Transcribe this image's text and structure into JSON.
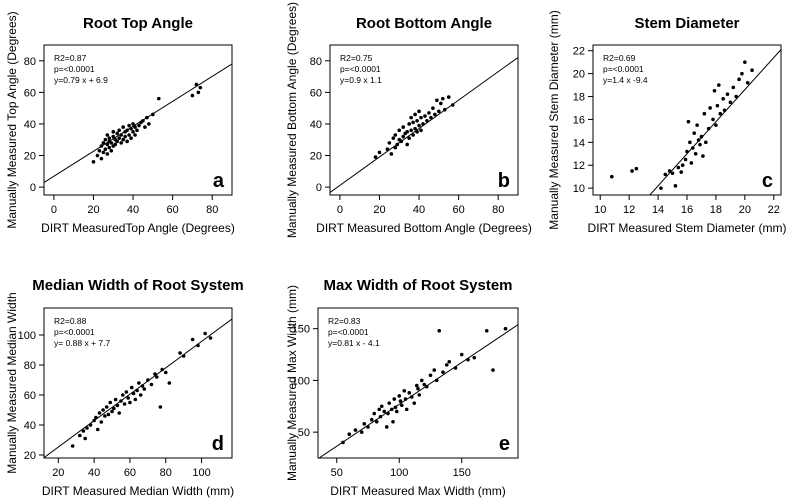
{
  "chart_data": [
    {
      "type": "scatter",
      "title": "Root Top Angle",
      "xlabel": "DIRT MeasuredTop Angle (Degrees)",
      "ylabel": "Manually Measured Top Angle (Degrees)",
      "xlim": [
        -5,
        90
      ],
      "ylim": [
        -5,
        90
      ],
      "xticks": [
        0,
        20,
        40,
        60,
        80
      ],
      "yticks": [
        0,
        20,
        40,
        60,
        80
      ],
      "stats": [
        "R2=0.87",
        "p=<0.0001",
        "y=0.79 x + 6.9"
      ],
      "fit": {
        "slope": 0.79,
        "intercept": 6.9
      },
      "panel_label": "a",
      "x": [
        20,
        22,
        23,
        24,
        24,
        25,
        25,
        26,
        26,
        27,
        27,
        27,
        28,
        28,
        28,
        29,
        29,
        30,
        30,
        30,
        31,
        31,
        32,
        32,
        33,
        33,
        34,
        34,
        35,
        35,
        36,
        36,
        37,
        37,
        38,
        38,
        39,
        39,
        40,
        40,
        41,
        41,
        42,
        43,
        44,
        45,
        46,
        47,
        48,
        50,
        53,
        70,
        72,
        73,
        74
      ],
      "y": [
        16,
        20,
        23,
        18,
        26,
        22,
        28,
        24,
        30,
        21,
        27,
        33,
        25,
        29,
        31,
        23,
        28,
        26,
        32,
        35,
        27,
        30,
        29,
        34,
        31,
        36,
        28,
        33,
        30,
        38,
        32,
        35,
        29,
        36,
        33,
        39,
        31,
        37,
        35,
        40,
        33,
        38,
        36,
        39,
        41,
        42,
        38,
        44,
        40,
        46,
        56,
        58,
        65,
        60,
        63
      ]
    },
    {
      "type": "scatter",
      "title": "Root Bottom Angle",
      "xlabel": "DIRT Measured Bottom Angle (Degrees)",
      "ylabel": "Manually Measured Bottom Angle (Degrees)",
      "xlim": [
        -5,
        90
      ],
      "ylim": [
        -5,
        90
      ],
      "xticks": [
        0,
        20,
        40,
        60,
        80
      ],
      "yticks": [
        0,
        20,
        40,
        60,
        80
      ],
      "stats": [
        "R2=0.75",
        "p=<0.0001",
        "y=0.9 x 1.1"
      ],
      "fit": {
        "slope": 0.9,
        "intercept": 1.1
      },
      "panel_label": "b",
      "x": [
        18,
        20,
        24,
        25,
        26,
        27,
        28,
        28,
        29,
        30,
        30,
        31,
        32,
        32,
        33,
        34,
        34,
        35,
        35,
        36,
        36,
        37,
        37,
        38,
        38,
        39,
        39,
        40,
        40,
        41,
        41,
        42,
        43,
        44,
        45,
        46,
        47,
        48,
        49,
        50,
        51,
        52,
        53,
        55,
        57
      ],
      "y": [
        19,
        22,
        24,
        28,
        21,
        31,
        25,
        33,
        27,
        30,
        36,
        29,
        32,
        38,
        34,
        27,
        35,
        31,
        40,
        36,
        44,
        33,
        41,
        37,
        46,
        35,
        42,
        39,
        48,
        36,
        44,
        40,
        45,
        42,
        47,
        44,
        50,
        46,
        55,
        48,
        53,
        56,
        49,
        57,
        52
      ]
    },
    {
      "type": "scatter",
      "title": "Stem Diameter",
      "xlabel": "DIRT Measured Stem Diameter (mm)",
      "ylabel": "Manually Measured Stem Diameter (mm)",
      "xlim": [
        9.5,
        22.5
      ],
      "ylim": [
        9.4,
        22.5
      ],
      "xticks": [
        10,
        12,
        14,
        16,
        18,
        20,
        22
      ],
      "yticks": [
        10,
        12,
        14,
        16,
        18,
        20,
        22
      ],
      "stats": [
        "R2=0.69",
        "p=<0.0001",
        "y=1.4 x -9.4"
      ],
      "fit": {
        "slope": 1.4,
        "intercept": -9.4
      },
      "panel_label": "c",
      "x": [
        10.8,
        12.2,
        12.5,
        14.2,
        14.5,
        14.8,
        15.0,
        15.2,
        15.4,
        15.6,
        15.7,
        15.9,
        16.0,
        16.1,
        16.2,
        16.3,
        16.4,
        16.5,
        16.6,
        16.7,
        16.8,
        16.9,
        17.0,
        17.1,
        17.2,
        17.3,
        17.5,
        17.6,
        17.8,
        17.9,
        18.0,
        18.1,
        18.2,
        18.3,
        18.5,
        18.6,
        18.8,
        19.0,
        19.2,
        19.4,
        19.6,
        19.8,
        20.0,
        20.2,
        20.5
      ],
      "y": [
        11.0,
        11.5,
        11.7,
        10.0,
        11.2,
        11.5,
        11.3,
        10.2,
        11.8,
        11.4,
        12.0,
        12.5,
        13.2,
        15.8,
        14.0,
        12.2,
        13.5,
        14.8,
        13.0,
        15.5,
        14.2,
        13.8,
        14.5,
        12.8,
        16.5,
        14.0,
        15.2,
        17.0,
        16.0,
        18.5,
        15.5,
        17.2,
        19.0,
        16.5,
        17.8,
        16.8,
        18.2,
        17.5,
        18.8,
        18.0,
        19.5,
        20.0,
        21.0,
        19.2,
        20.3
      ]
    },
    {
      "type": "scatter",
      "title": "Median Width of Root System",
      "xlabel": "DIRT Measured Median Width (mm)",
      "ylabel": "Manually Measured Median Width",
      "xlim": [
        12,
        117
      ],
      "ylim": [
        18,
        118
      ],
      "xticks": [
        20,
        40,
        60,
        80,
        100
      ],
      "yticks": [
        20,
        40,
        60,
        80,
        100
      ],
      "stats": [
        "R2=0.88",
        "p=<0.0001",
        "y= 0.88 x + 7.7"
      ],
      "fit": {
        "slope": 0.88,
        "intercept": 7.7
      },
      "panel_label": "d",
      "x": [
        28,
        32,
        34,
        35,
        36,
        38,
        40,
        41,
        42,
        43,
        44,
        45,
        46,
        47,
        48,
        49,
        50,
        51,
        52,
        53,
        54,
        55,
        56,
        57,
        58,
        59,
        60,
        61,
        62,
        63,
        64,
        65,
        66,
        67,
        68,
        70,
        72,
        74,
        75,
        77,
        78,
        80,
        82,
        88,
        90,
        95,
        98,
        102,
        105
      ],
      "y": [
        26,
        33,
        36,
        31,
        38,
        40,
        43,
        45,
        37,
        48,
        42,
        50,
        46,
        52,
        47,
        55,
        49,
        51,
        57,
        53,
        48,
        56,
        60,
        54,
        62,
        58,
        55,
        65,
        61,
        57,
        63,
        68,
        60,
        66,
        64,
        70,
        67,
        74,
        72,
        52,
        77,
        75,
        68,
        88,
        86,
        97,
        93,
        101,
        98
      ]
    },
    {
      "type": "scatter",
      "title": "Max Width of Root System",
      "xlabel": "DIRT Measured Max Width (mm)",
      "ylabel": "Manually Measured Max Width (mm)",
      "xlim": [
        35,
        195
      ],
      "ylim": [
        25,
        170
      ],
      "xticks": [
        50,
        100,
        150
      ],
      "yticks": [
        50,
        100,
        150
      ],
      "stats": [
        "R2=0.83",
        "p=<0.0001",
        "y=0.81 x - 4.1"
      ],
      "fit": {
        "slope": 0.81,
        "intercept": -4.1
      },
      "panel_label": "e",
      "x": [
        55,
        60,
        65,
        70,
        72,
        75,
        78,
        80,
        82,
        84,
        85,
        86,
        88,
        90,
        91,
        92,
        94,
        95,
        96,
        97,
        98,
        100,
        101,
        102,
        104,
        105,
        106,
        108,
        110,
        112,
        114,
        115,
        116,
        118,
        120,
        122,
        125,
        128,
        130,
        132,
        135,
        138,
        140,
        145,
        150,
        155,
        160,
        170,
        175,
        185
      ],
      "y": [
        40,
        48,
        52,
        50,
        58,
        55,
        62,
        68,
        60,
        72,
        65,
        75,
        70,
        55,
        68,
        78,
        72,
        60,
        82,
        74,
        70,
        85,
        80,
        76,
        90,
        82,
        72,
        88,
        84,
        78,
        95,
        92,
        86,
        100,
        96,
        94,
        105,
        110,
        100,
        148,
        108,
        115,
        118,
        112,
        125,
        120,
        122,
        148,
        110,
        150
      ]
    }
  ]
}
